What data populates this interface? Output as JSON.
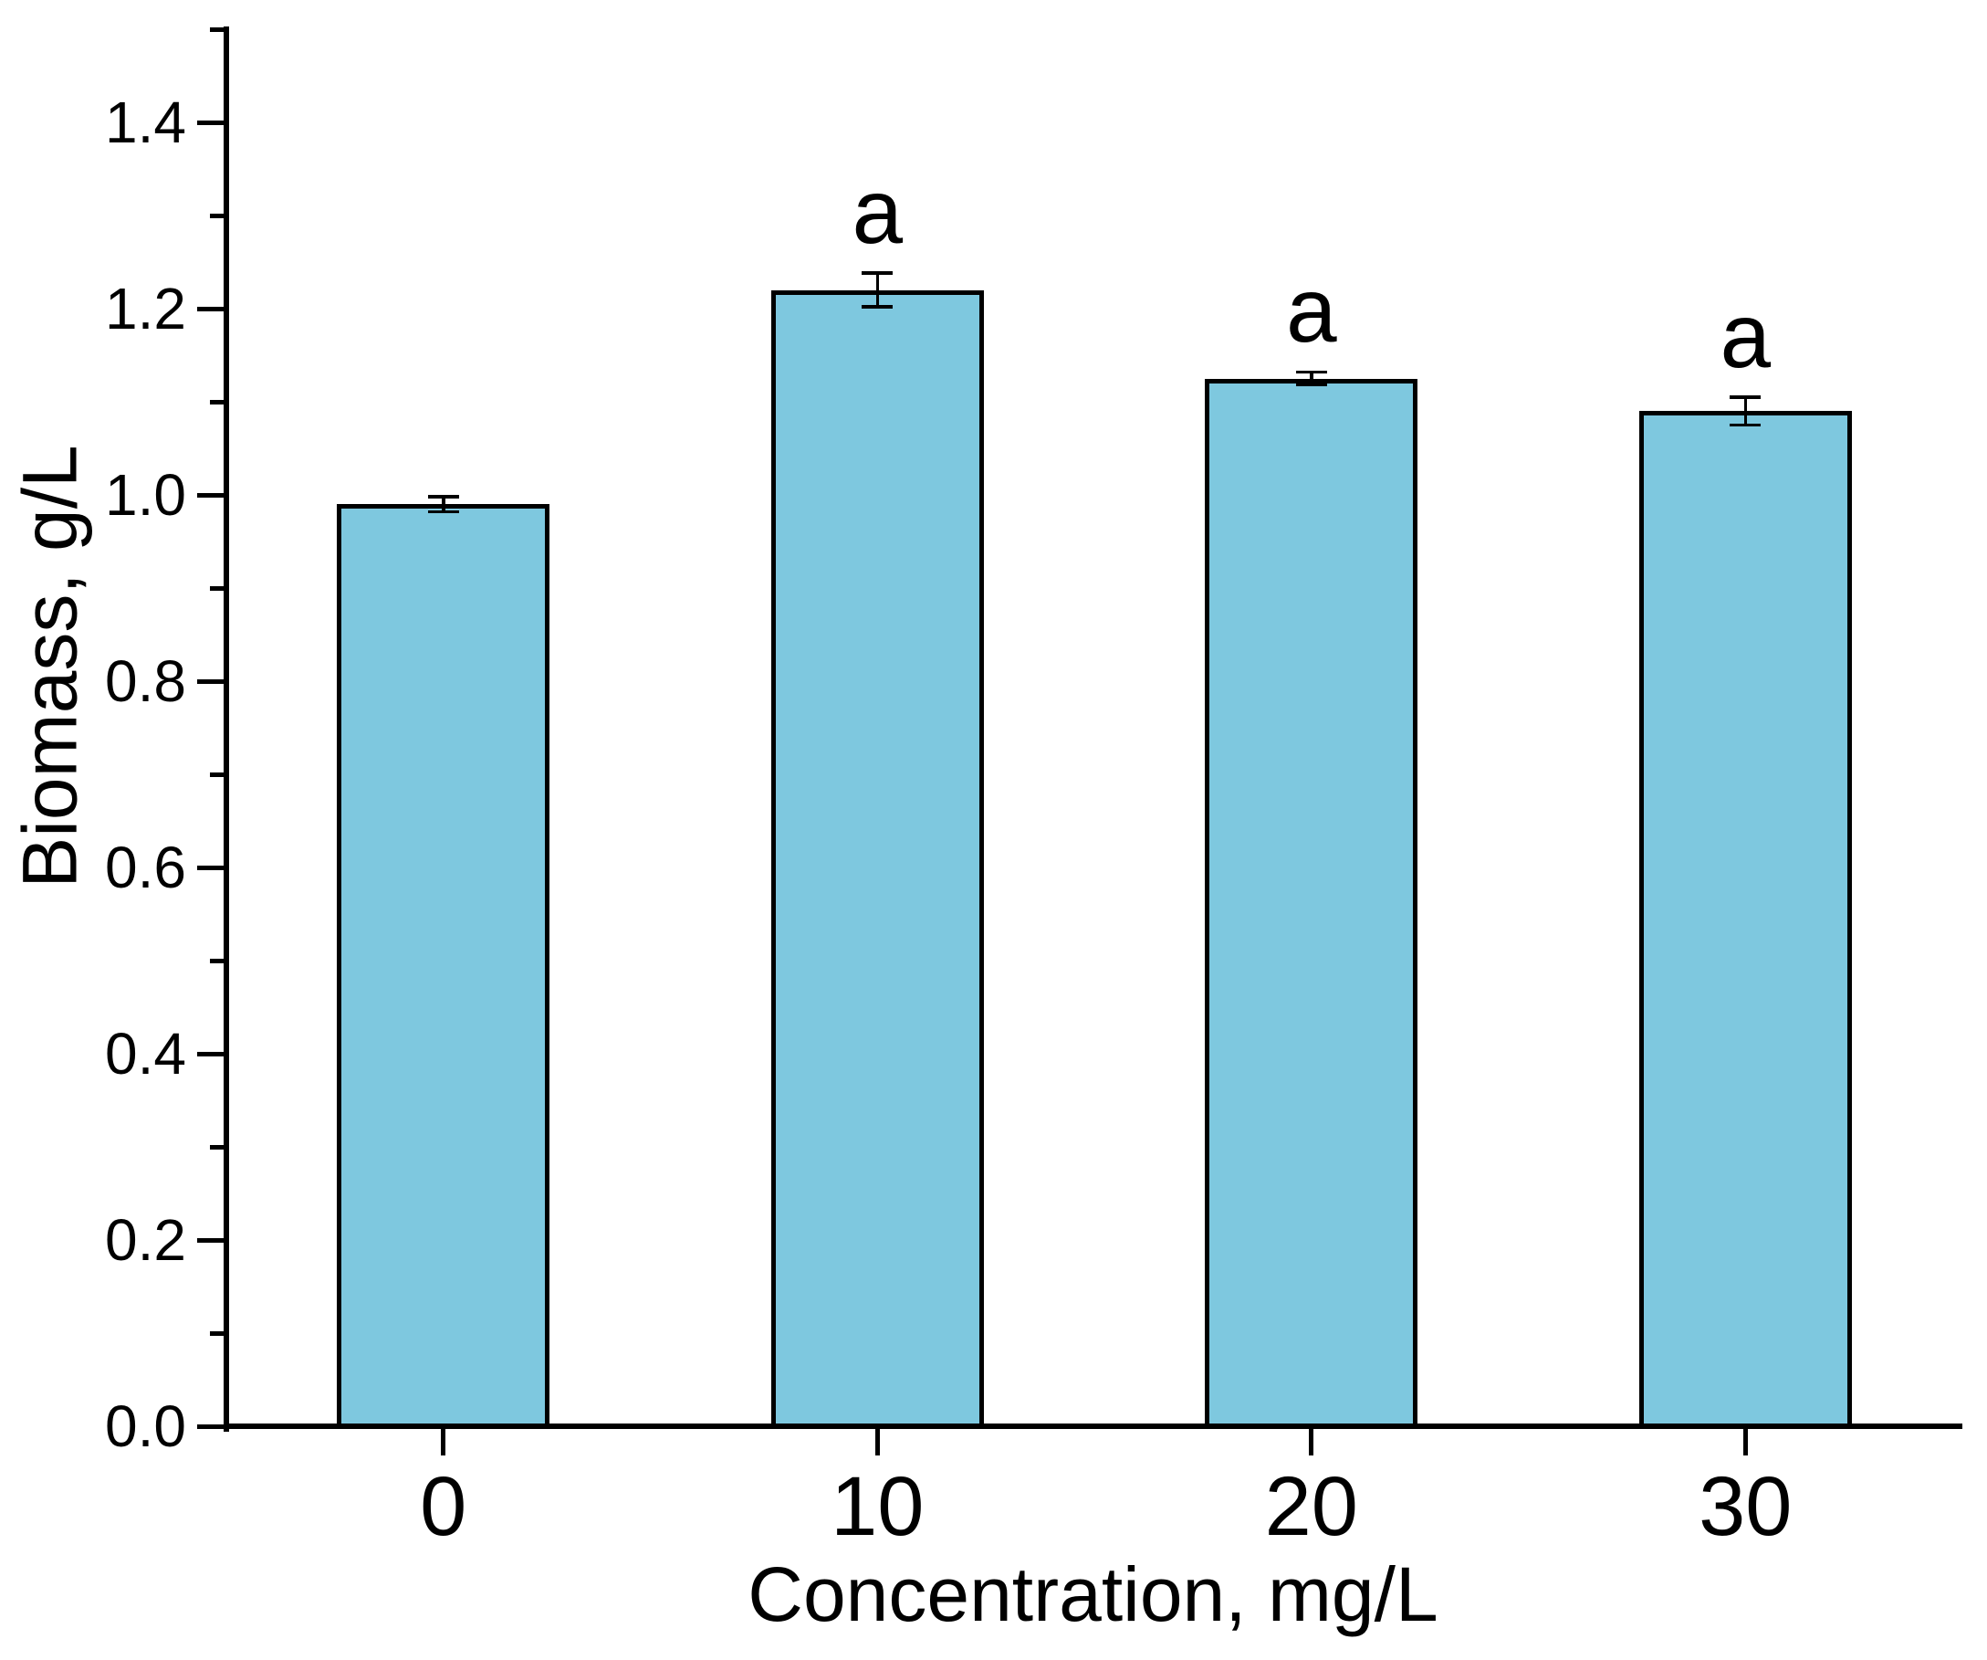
{
  "chart_data": {
    "type": "bar",
    "title": "",
    "xlabel": "Concentration, mg/L",
    "ylabel": "Biomass, g/L",
    "categories": [
      "0",
      "10",
      "20",
      "30"
    ],
    "values": [
      0.99,
      1.22,
      1.125,
      1.09
    ],
    "errors": [
      0.008,
      0.018,
      0.007,
      0.015
    ],
    "significance_labels": [
      "",
      "a",
      "a",
      "a"
    ],
    "ylim": [
      0,
      1.5
    ],
    "y_major_tick_step": 0.2,
    "y_minor_tick_step": 0.1,
    "y_tick_labels": [
      "0.0",
      "0.2",
      "0.4",
      "0.6",
      "0.8",
      "1.0",
      "1.2",
      "1.4"
    ],
    "grid": false,
    "legend": "none",
    "bar_fill_color": "#7EC8DF",
    "bar_edge_color": "#000000",
    "axis_color": "#000000"
  }
}
